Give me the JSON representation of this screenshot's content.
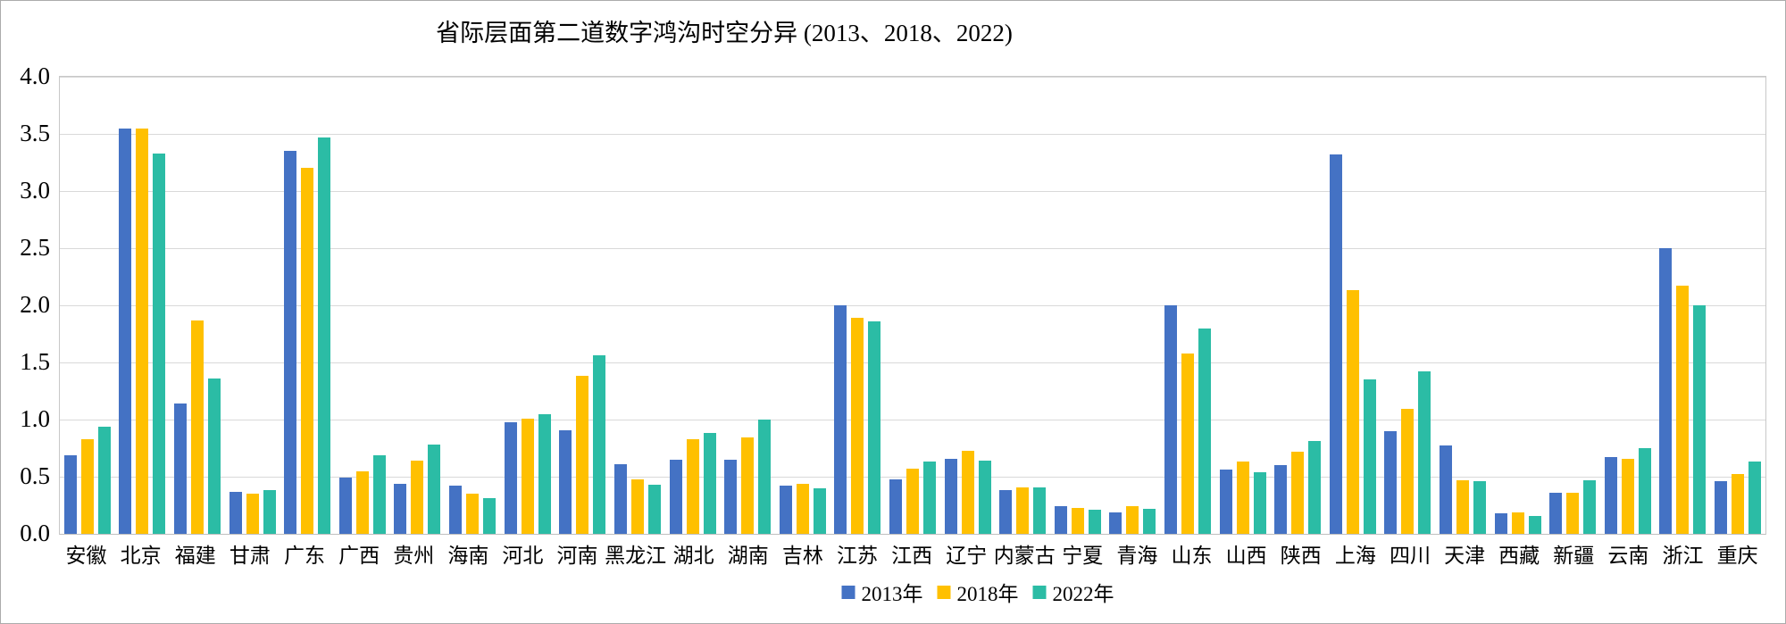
{
  "chart_data": {
    "type": "bar",
    "title": "省际层面第二道数字鸿沟时空分异 (2013、2018、2022)",
    "xlabel": "",
    "ylabel": "",
    "ylim": [
      0,
      4
    ],
    "ytick_step": 0.5,
    "yticks": [
      "4.0",
      "3.5",
      "3.0",
      "2.5",
      "2.0",
      "1.5",
      "1.0",
      "0.5",
      "0.0"
    ],
    "grid": "horizontal",
    "legend_position": "bottom",
    "categories": [
      "安徽",
      "北京",
      "福建",
      "甘肃",
      "广东",
      "广西",
      "贵州",
      "海南",
      "河北",
      "河南",
      "黑龙江",
      "湖北",
      "湖南",
      "吉林",
      "江苏",
      "江西",
      "辽宁",
      "内蒙古",
      "宁夏",
      "青海",
      "山东",
      "山西",
      "陕西",
      "上海",
      "四川",
      "天津",
      "西藏",
      "新疆",
      "云南",
      "浙江",
      "重庆"
    ],
    "series": [
      {
        "name": "2013年",
        "color": "#4472C4",
        "values": [
          0.69,
          3.55,
          1.14,
          0.37,
          3.35,
          0.49,
          0.44,
          0.42,
          0.98,
          0.91,
          0.61,
          0.65,
          0.65,
          0.42,
          2.0,
          0.48,
          0.66,
          0.38,
          0.24,
          0.19,
          2.0,
          0.56,
          0.6,
          3.32,
          0.9,
          0.77,
          0.18,
          0.36,
          0.67,
          2.5,
          0.46
        ]
      },
      {
        "name": "2018年",
        "color": "#FFC000",
        "values": [
          0.83,
          3.55,
          1.87,
          0.35,
          3.2,
          0.55,
          0.64,
          0.35,
          1.01,
          1.38,
          0.48,
          0.83,
          0.84,
          0.44,
          1.89,
          0.57,
          0.73,
          0.41,
          0.23,
          0.24,
          1.58,
          0.63,
          0.72,
          2.13,
          1.09,
          0.47,
          0.19,
          0.36,
          0.66,
          2.17,
          0.52
        ]
      },
      {
        "name": "2022年",
        "color": "#2BBCA5",
        "values": [
          0.94,
          3.33,
          1.36,
          0.38,
          3.47,
          0.69,
          0.78,
          0.31,
          1.05,
          1.56,
          0.43,
          0.88,
          1.0,
          0.4,
          1.86,
          0.63,
          0.64,
          0.41,
          0.21,
          0.22,
          1.8,
          0.54,
          0.81,
          1.35,
          1.42,
          0.46,
          0.16,
          0.47,
          0.75,
          2.0,
          0.63
        ]
      }
    ]
  }
}
